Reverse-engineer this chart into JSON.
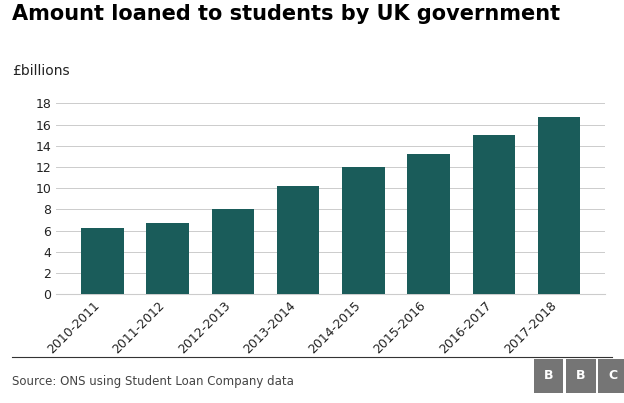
{
  "title": "Amount loaned to students by UK government",
  "ylabel": "£billions",
  "categories": [
    "2010-2011",
    "2011-2012",
    "2012-2013",
    "2013-2014",
    "2014-2015",
    "2015-2016",
    "2016-2017",
    "2017-2018"
  ],
  "values": [
    6.2,
    6.7,
    8.0,
    10.2,
    12.0,
    13.2,
    15.0,
    16.7
  ],
  "bar_color": "#1a5c5a",
  "background_color": "#ffffff",
  "ylim": [
    0,
    19
  ],
  "yticks": [
    0,
    2,
    4,
    6,
    8,
    10,
    12,
    14,
    16,
    18
  ],
  "title_fontsize": 15,
  "ylabel_fontsize": 10,
  "tick_fontsize": 9,
  "footer_text": "Source: ONS using Student Loan Company data",
  "bbc_letters": [
    "B",
    "B",
    "C"
  ],
  "bbc_box_color": "#757575",
  "grid_color": "#cccccc",
  "axis_color": "#222222",
  "footer_color": "#444444",
  "separator_color": "#333333"
}
